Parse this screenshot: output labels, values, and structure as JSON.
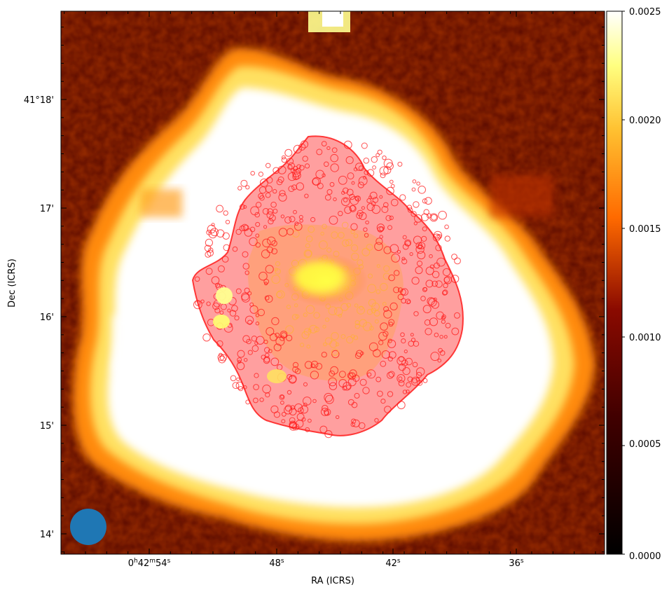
{
  "chart_data": {
    "type": "heatmap",
    "description_kind": "sky image (dust emission map) with overlaid red contour sources",
    "xlabel": "RA (ICRS)",
    "ylabel": "Dec (ICRS)",
    "x_ticks": [
      {
        "value_deg_ra": "0h42m54s",
        "parts": [
          {
            "t": "0",
            "sup": false
          },
          {
            "t": "h",
            "sup": true
          },
          {
            "t": "42",
            "sup": false
          },
          {
            "t": "m",
            "sup": true
          },
          {
            "t": "54",
            "sup": false
          },
          {
            "t": "s",
            "sup": true
          }
        ]
      },
      {
        "value_deg_ra": "0h42m48s",
        "parts": [
          {
            "t": "48",
            "sup": false
          },
          {
            "t": "s",
            "sup": true
          }
        ]
      },
      {
        "value_deg_ra": "0h42m42s",
        "parts": [
          {
            "t": "42",
            "sup": false
          },
          {
            "t": "s",
            "sup": true
          }
        ]
      },
      {
        "value_deg_ra": "0h42m36s",
        "parts": [
          {
            "t": "36",
            "sup": false
          },
          {
            "t": "s",
            "sup": true
          }
        ]
      }
    ],
    "y_ticks": [
      "41°18'",
      "17'",
      "16'",
      "15'",
      "14'"
    ],
    "colorbar": {
      "colormap": "afmhot",
      "vmin": 0.0,
      "vmax": 0.0025,
      "ticks": [
        "0.0025",
        "0.0020",
        "0.0015",
        "0.0010",
        "0.0005",
        "0.0000"
      ],
      "tick_values": [
        0.0025,
        0.002,
        0.0015,
        0.001,
        0.0005,
        0.0
      ]
    },
    "overlay": {
      "contour_color": "#ff0000",
      "beam_color": "#1f77b4"
    },
    "grid": false
  }
}
